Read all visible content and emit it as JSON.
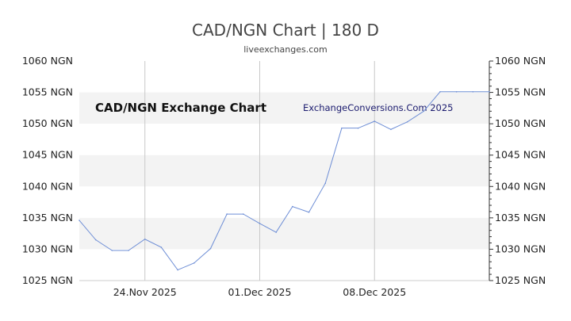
{
  "title": "CAD/NGN Chart | 180 D",
  "subtitle": "liveexchanges.com",
  "watermarks": {
    "left": "CAD/NGN Exchange Chart",
    "right": "ExchangeConversions.Com 2025"
  },
  "colors": {
    "line": "#6f8fd6",
    "band": "#f3f3f3",
    "grid": "#c8c8c8",
    "watermark_right": "#1a1a6e"
  },
  "chart_data": {
    "type": "line",
    "title": "CAD/NGN Chart | 180 D",
    "xlabel": "",
    "ylabel": "",
    "ylim": [
      1025,
      1060
    ],
    "xlim": [
      "2025-11-20",
      "2025-12-15"
    ],
    "y_ticks": [
      "1025 NGN",
      "1030 NGN",
      "1035 NGN",
      "1040 NGN",
      "1045 NGN",
      "1050 NGN",
      "1055 NGN",
      "1060 NGN"
    ],
    "x_ticks": [
      {
        "date": "2025-11-24",
        "label": "24.Nov 2025"
      },
      {
        "date": "2025-12-01",
        "label": "01.Dec 2025"
      },
      {
        "date": "2025-12-08",
        "label": "08.Dec 2025"
      }
    ],
    "grid": "vertical lines at x ticks, alternating horizontal bands",
    "x": [
      "2025-11-20",
      "2025-11-21",
      "2025-11-22",
      "2025-11-23",
      "2025-11-24",
      "2025-11-25",
      "2025-11-26",
      "2025-11-27",
      "2025-11-28",
      "2025-11-29",
      "2025-11-30",
      "2025-12-01",
      "2025-12-02",
      "2025-12-03",
      "2025-12-04",
      "2025-12-05",
      "2025-12-06",
      "2025-12-07",
      "2025-12-08",
      "2025-12-09",
      "2025-12-10",
      "2025-12-11",
      "2025-12-12",
      "2025-12-13",
      "2025-12-14",
      "2025-12-15"
    ],
    "values": [
      1034.6,
      1031.5,
      1029.8,
      1029.8,
      1031.6,
      1030.3,
      1026.7,
      1027.8,
      1030.1,
      1035.6,
      1035.6,
      1034.1,
      1032.7,
      1036.8,
      1035.9,
      1040.5,
      1049.3,
      1049.3,
      1050.4,
      1049.1,
      1050.3,
      1052.0,
      1055.1,
      1055.1,
      1055.1,
      1055.1
    ]
  }
}
